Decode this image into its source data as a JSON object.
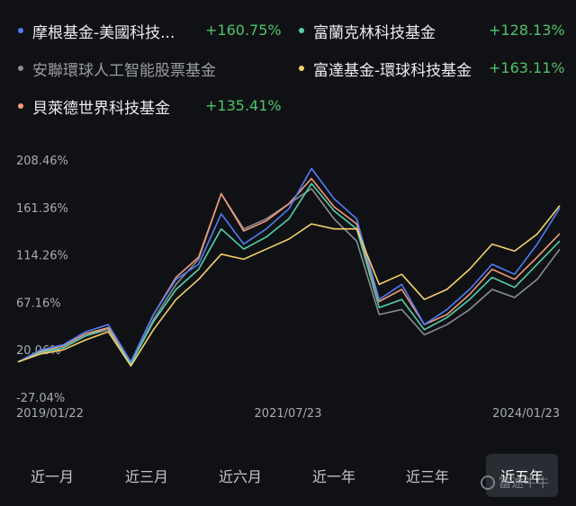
{
  "legend": [
    {
      "name": "摩根基金-美國科技...",
      "value": "+160.75%",
      "color": "#4f7df5"
    },
    {
      "name": "富蘭克林科技基金",
      "value": "+128.13%",
      "color": "#52d2ae"
    },
    {
      "name": "安聯環球人工智能股票基金",
      "value": "",
      "color": "#8a8d95"
    },
    {
      "name": "富達基金-環球科技基金",
      "value": "+163.11%",
      "color": "#f4d26a"
    },
    {
      "name": "貝萊德世界科技基金",
      "value": "+135.41%",
      "color": "#f29b78"
    }
  ],
  "tabs": [
    "近一月",
    "近三月",
    "近六月",
    "近一年",
    "近三年",
    "近五年"
  ],
  "active_tab": "近五年",
  "watermark": "富途牛牛",
  "chart_data": {
    "type": "line",
    "y_ticks": [
      "208.46%",
      "161.36%",
      "114.26%",
      "67.16%",
      "20.06%",
      "-27.04%"
    ],
    "ylim": [
      -27.04,
      208.46
    ],
    "x_ticks": [
      "2019/01/22",
      "2021/07/23",
      "2024/01/23"
    ],
    "x": [
      "2019/01",
      "2019/07",
      "2019/10",
      "2020/01",
      "2020/02",
      "2020/03",
      "2020/06",
      "2020/09",
      "2020/12",
      "2021/02",
      "2021/05",
      "2021/07",
      "2021/09",
      "2021/11",
      "2022/01",
      "2022/03",
      "2022/06",
      "2022/09",
      "2022/10",
      "2023/01",
      "2023/04",
      "2023/07",
      "2023/10",
      "2024/01",
      "2024/03"
    ],
    "series": [
      {
        "name": "摩根基金-美國科技...",
        "color": "#4f7df5",
        "values": [
          8,
          20,
          25,
          38,
          45,
          8,
          55,
          90,
          105,
          155,
          125,
          140,
          160,
          200,
          170,
          150,
          70,
          85,
          45,
          60,
          80,
          105,
          95,
          125,
          160.75
        ]
      },
      {
        "name": "富蘭克林科技基金",
        "color": "#52d2ae",
        "values": [
          8,
          18,
          22,
          34,
          42,
          6,
          48,
          80,
          100,
          140,
          120,
          132,
          150,
          185,
          158,
          140,
          62,
          70,
          40,
          52,
          70,
          92,
          82,
          105,
          128.13
        ]
      },
      {
        "name": "安聯環球人工智能股票基金",
        "color": "#8a8d95",
        "values": [
          8,
          17,
          22,
          34,
          40,
          6,
          50,
          85,
          110,
          175,
          140,
          150,
          165,
          180,
          150,
          128,
          55,
          60,
          35,
          45,
          60,
          80,
          72,
          90,
          120
        ]
      },
      {
        "name": "富達基金-環球科技基金",
        "color": "#f4d26a",
        "values": [
          8,
          16,
          20,
          30,
          38,
          4,
          40,
          70,
          90,
          115,
          110,
          120,
          130,
          145,
          140,
          140,
          85,
          95,
          70,
          80,
          100,
          125,
          118,
          135,
          163.11
        ]
      },
      {
        "name": "貝萊德世界科技基金",
        "color": "#f29b78",
        "values": [
          8,
          19,
          24,
          36,
          42,
          8,
          55,
          92,
          112,
          175,
          138,
          148,
          165,
          190,
          162,
          145,
          68,
          80,
          45,
          55,
          75,
          100,
          90,
          112,
          135.41
        ]
      }
    ]
  }
}
